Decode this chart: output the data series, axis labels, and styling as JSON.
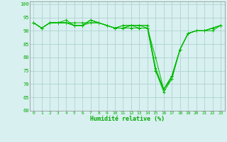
{
  "x": [
    0,
    1,
    2,
    3,
    4,
    5,
    6,
    7,
    8,
    9,
    10,
    11,
    12,
    13,
    14,
    15,
    16,
    17,
    18,
    19,
    20,
    21,
    22,
    23
  ],
  "series": [
    [
      93,
      91,
      93,
      93,
      93,
      92,
      92,
      94,
      93,
      92,
      91,
      91,
      92,
      92,
      92,
      75,
      68,
      73,
      83,
      89,
      90,
      90,
      91,
      92
    ],
    [
      93,
      91,
      93,
      93,
      94,
      92,
      92,
      94,
      93,
      92,
      91,
      92,
      92,
      92,
      92,
      76,
      68,
      73,
      83,
      89,
      90,
      90,
      91,
      92
    ],
    [
      93,
      91,
      93,
      93,
      93,
      93,
      93,
      93,
      93,
      92,
      91,
      92,
      92,
      91,
      91,
      75,
      68,
      72,
      83,
      89,
      90,
      90,
      91,
      92
    ],
    [
      93,
      91,
      93,
      93,
      93,
      92,
      92,
      94,
      93,
      92,
      91,
      91,
      91,
      91,
      91,
      75,
      67,
      72,
      83,
      89,
      90,
      90,
      90,
      92
    ],
    [
      93,
      91,
      93,
      93,
      93,
      92,
      92,
      93,
      93,
      92,
      91,
      91,
      92,
      92,
      91,
      80,
      68,
      73,
      83,
      89,
      90,
      90,
      91,
      92
    ]
  ],
  "line_color": "#00bb00",
  "marker_color": "#00bb00",
  "background_color": "#d8f0f0",
  "grid_color": "#aacccc",
  "xlabel": "Humidité relative (%)",
  "xlabel_color": "#00aa00",
  "tick_color": "#00aa00",
  "ylim": [
    60,
    101
  ],
  "yticks": [
    60,
    65,
    70,
    75,
    80,
    85,
    90,
    95,
    100
  ],
  "xticks": [
    0,
    1,
    2,
    3,
    4,
    5,
    6,
    7,
    8,
    9,
    10,
    11,
    12,
    13,
    14,
    15,
    16,
    17,
    18,
    19,
    20,
    21,
    22,
    23
  ],
  "figsize": [
    3.2,
    2.0
  ],
  "dpi": 100
}
